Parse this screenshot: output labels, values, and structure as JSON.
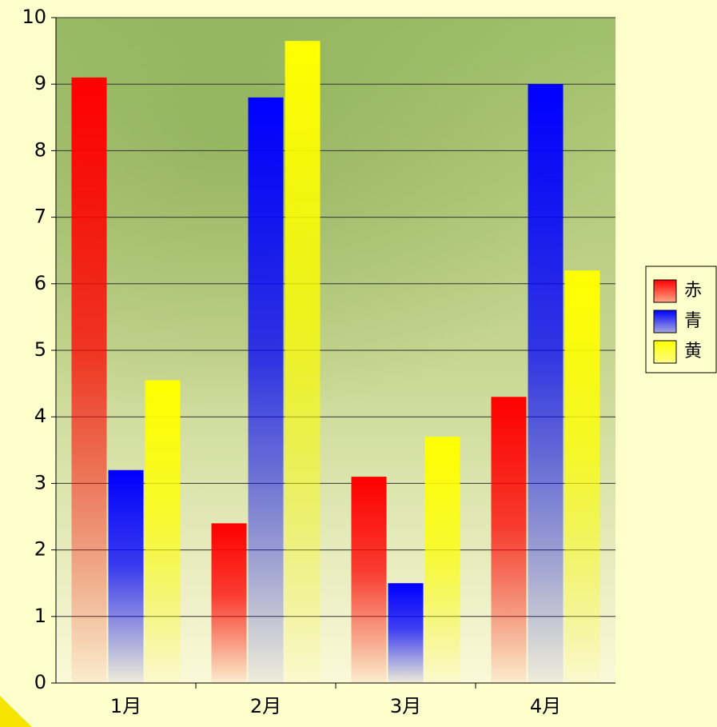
{
  "chart_data": {
    "type": "bar",
    "categories": [
      "1月",
      "2月",
      "3月",
      "4月"
    ],
    "series": [
      {
        "name": "赤",
        "color": "#ff0000",
        "values": [
          9.1,
          2.4,
          3.1,
          4.3
        ]
      },
      {
        "name": "青",
        "color": "#0000ff",
        "values": [
          3.2,
          8.8,
          1.5,
          9.0
        ]
      },
      {
        "name": "黄",
        "color": "#ffff00",
        "values": [
          4.55,
          9.65,
          3.7,
          6.2
        ]
      }
    ],
    "ylim": [
      0,
      10
    ],
    "yticks": [
      0,
      1,
      2,
      3,
      4,
      5,
      6,
      7,
      8,
      9,
      10
    ],
    "grid": true,
    "legend": "right"
  }
}
